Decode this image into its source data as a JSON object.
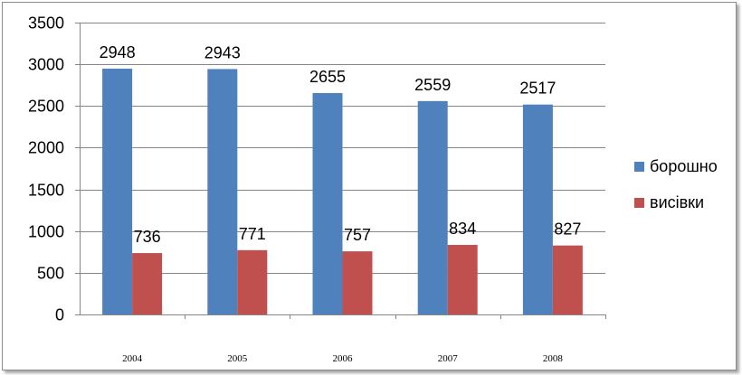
{
  "chart_data": {
    "type": "bar",
    "title": "",
    "xlabel": "",
    "ylabel": "",
    "categories": [
      "2004",
      "2005",
      "2006",
      "2007",
      "2008"
    ],
    "series": [
      {
        "name": "борошно",
        "values": [
          2948,
          2943,
          2655,
          2559,
          2517
        ],
        "color": "#4f81bd"
      },
      {
        "name": "висівки",
        "values": [
          736,
          771,
          757,
          834,
          827
        ],
        "color": "#c0504d"
      }
    ],
    "ylim": [
      0,
      3500
    ],
    "yticks": [
      0,
      500,
      1000,
      1500,
      2000,
      2500,
      3000,
      3500
    ],
    "grid": true,
    "legend": "right",
    "data_labels": true
  }
}
